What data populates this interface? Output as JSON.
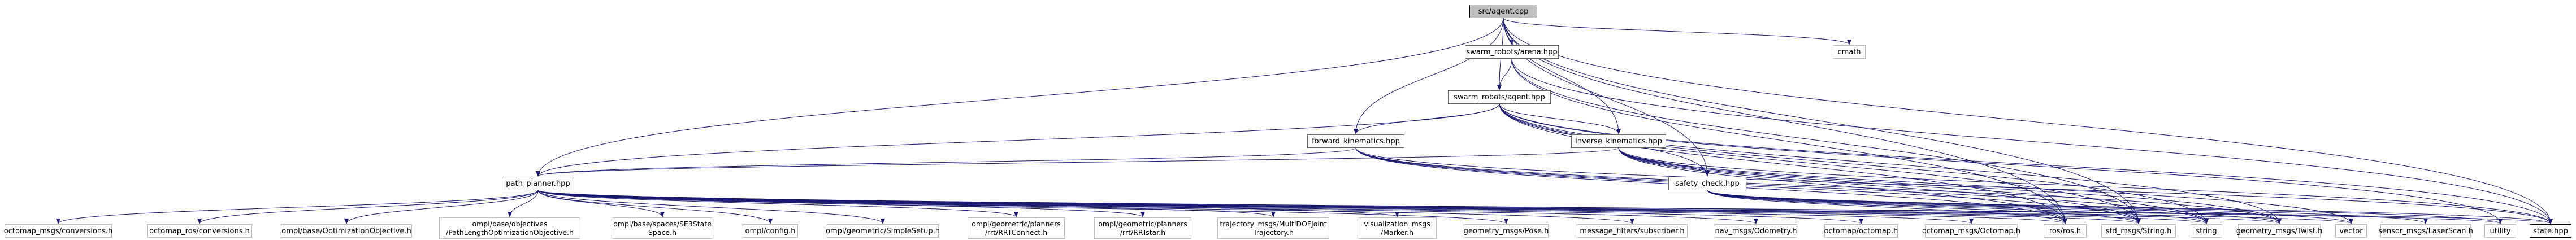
{
  "graph": {
    "root": "src/agent.cpp",
    "nodes": {
      "agent_cpp": "src/agent.cpp",
      "arena_hpp": "swarm_robots/arena.hpp",
      "cmath": "cmath",
      "agent_hpp": "swarm_robots/agent.hpp",
      "fk_hpp": "forward_kinematics.hpp",
      "ik_hpp": "inverse_kinematics.hpp",
      "path_planner": "path_planner.hpp",
      "safety_check": "safety_check.hpp",
      "octomap_msgs_conversions": "octomap_msgs/conversions.h",
      "octomap_ros_conversions": "octomap_ros/conversions.h",
      "ompl_opt_objective": "ompl/base/OptimizationObjective.h",
      "ompl_path_length": "ompl/base/objectives\n/PathLengthOptimizationObjective.h",
      "ompl_se3": "ompl/base/spaces/SE3State\nSpace.h",
      "ompl_config": "ompl/config.h",
      "ompl_simple_setup": "ompl/geometric/SimpleSetup.h",
      "ompl_rrtconnect": "ompl/geometric/planners\n/rrt/RRTConnect.h",
      "ompl_rrtstar": "ompl/geometric/planners\n/rrt/RRTstar.h",
      "traj_msgs": "trajectory_msgs/MultiDOFJoint\nTrajectory.h",
      "vis_msgs": "visualization_msgs\n/Marker.h",
      "geo_pose": "geometry_msgs/Pose.h",
      "msg_filters": "message_filters/subscriber.h",
      "nav_odom": "nav_msgs/Odometry.h",
      "octomap_octomap": "octomap/octomap.h",
      "octomap_msgs_octomap": "octomap_msgs/Octomap.h",
      "ros_h": "ros/ros.h",
      "std_string": "std_msgs/String.h",
      "string": "string",
      "geo_twist": "geometry_msgs/Twist.h",
      "vector": "vector",
      "sensor_laser": "sensor_msgs/LaserScan.h",
      "utility": "utility",
      "state_hpp": "state.hpp"
    }
  }
}
